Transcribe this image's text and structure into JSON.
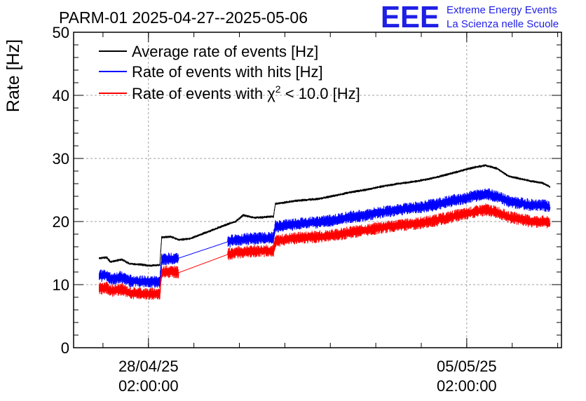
{
  "chart_data": {
    "type": "line",
    "title": "PARM-01 2025-04-27--2025-05-06",
    "ylabel": "Rate [Hz]",
    "xlabel": "",
    "ylim": [
      0,
      50
    ],
    "yticks": [
      0,
      10,
      20,
      30,
      40,
      50
    ],
    "xticks": [
      {
        "date": "2025-04-28T02:00:00",
        "label_line1": "28/04/25",
        "label_line2": "02:00:00"
      },
      {
        "date": "2025-05-05T02:00:00",
        "label_line1": "05/05/25",
        "label_line2": "02:00:00"
      }
    ],
    "xlim": [
      "2025-04-26T10:30:00",
      "2025-05-07T04:00:00"
    ],
    "grid": true,
    "legend_position": "top-left",
    "legend": [
      {
        "label": "Average rate of events [Hz]",
        "color": "#000000"
      },
      {
        "label": "Rate of events with hits [Hz]",
        "color": "#0000ff"
      },
      {
        "label_prefix": "Rate of events with ",
        "label_symbol": "χ",
        "label_sup": "2",
        "label_suffix": " < 10.0 [Hz]",
        "color": "#ff0000"
      }
    ],
    "series": [
      {
        "color": "#000000",
        "band": 0.2,
        "points": [
          [
            "2025-04-27T00:00:00",
            14.2
          ],
          [
            "2025-04-27T04:00:00",
            14.3
          ],
          [
            "2025-04-27T06:00:00",
            13.6
          ],
          [
            "2025-04-27T12:00:00",
            14.0
          ],
          [
            "2025-04-27T16:00:00",
            13.3
          ],
          [
            "2025-04-27T22:00:00",
            13.2
          ],
          [
            "2025-04-28T02:00:00",
            13.0
          ],
          [
            "2025-04-28T08:00:00",
            13.1
          ],
          [
            "2025-04-28T09:00:00",
            17.5
          ],
          [
            "2025-04-28T14:00:00",
            17.6
          ],
          [
            "2025-04-28T18:00:00",
            17.1
          ],
          [
            "2025-04-29T00:00:00",
            17.3
          ],
          [
            "2025-04-29T20:00:00",
            19.6
          ],
          [
            "2025-04-30T00:00:00",
            20.0
          ],
          [
            "2025-04-30T04:00:00",
            21.0
          ],
          [
            "2025-04-30T10:00:00",
            20.6
          ],
          [
            "2025-04-30T20:00:00",
            20.8
          ],
          [
            "2025-04-30T21:00:00",
            22.8
          ],
          [
            "2025-05-01T08:00:00",
            23.3
          ],
          [
            "2025-05-01T20:00:00",
            23.6
          ],
          [
            "2025-05-02T06:00:00",
            24.2
          ],
          [
            "2025-05-02T12:00:00",
            24.6
          ],
          [
            "2025-05-02T20:00:00",
            25.0
          ],
          [
            "2025-05-03T06:00:00",
            25.6
          ],
          [
            "2025-05-03T14:00:00",
            26.0
          ],
          [
            "2025-05-04T00:00:00",
            26.4
          ],
          [
            "2025-05-04T10:00:00",
            27.0
          ],
          [
            "2025-05-04T20:00:00",
            27.8
          ],
          [
            "2025-05-05T06:00:00",
            28.6
          ],
          [
            "2025-05-05T12:00:00",
            28.9
          ],
          [
            "2025-05-05T18:00:00",
            28.4
          ],
          [
            "2025-05-06T00:00:00",
            27.2
          ],
          [
            "2025-05-06T06:00:00",
            26.8
          ],
          [
            "2025-05-06T12:00:00",
            26.4
          ],
          [
            "2025-05-06T18:00:00",
            26.1
          ],
          [
            "2025-05-06T22:00:00",
            25.5
          ]
        ]
      },
      {
        "color": "#0000ff",
        "band": 1.0,
        "points": [
          [
            "2025-04-27T00:00:00",
            11.4
          ],
          [
            "2025-04-27T04:00:00",
            11.5
          ],
          [
            "2025-04-27T06:00:00",
            10.9
          ],
          [
            "2025-04-27T12:00:00",
            11.2
          ],
          [
            "2025-04-27T16:00:00",
            10.6
          ],
          [
            "2025-04-27T22:00:00",
            10.5
          ],
          [
            "2025-04-28T02:00:00",
            10.4
          ],
          [
            "2025-04-28T08:00:00",
            10.5
          ],
          [
            "2025-04-28T09:00:00",
            14.0
          ],
          [
            "2025-04-28T14:00:00",
            14.1
          ],
          [
            "2025-04-28T18:00:00",
            14.2
          ],
          [
            "2025-04-29T20:00:00",
            16.8
          ],
          [
            "2025-04-30T00:00:00",
            17.1
          ],
          [
            "2025-04-30T10:00:00",
            17.3
          ],
          [
            "2025-04-30T20:00:00",
            17.4
          ],
          [
            "2025-04-30T21:00:00",
            19.2
          ],
          [
            "2025-05-01T08:00:00",
            19.6
          ],
          [
            "2025-05-01T20:00:00",
            19.9
          ],
          [
            "2025-05-02T06:00:00",
            20.3
          ],
          [
            "2025-05-02T12:00:00",
            20.7
          ],
          [
            "2025-05-02T20:00:00",
            21.0
          ],
          [
            "2025-05-03T06:00:00",
            21.5
          ],
          [
            "2025-05-03T14:00:00",
            21.9
          ],
          [
            "2025-05-04T00:00:00",
            22.2
          ],
          [
            "2025-05-04T10:00:00",
            22.7
          ],
          [
            "2025-05-04T20:00:00",
            23.4
          ],
          [
            "2025-05-05T06:00:00",
            24.0
          ],
          [
            "2025-05-05T12:00:00",
            24.4
          ],
          [
            "2025-05-05T18:00:00",
            24.0
          ],
          [
            "2025-05-06T00:00:00",
            23.2
          ],
          [
            "2025-05-06T06:00:00",
            22.9
          ],
          [
            "2025-05-06T12:00:00",
            22.6
          ],
          [
            "2025-05-06T18:00:00",
            22.6
          ],
          [
            "2025-05-06T22:00:00",
            22.3
          ]
        ]
      },
      {
        "color": "#ff0000",
        "band": 1.0,
        "points": [
          [
            "2025-04-27T00:00:00",
            9.4
          ],
          [
            "2025-04-27T04:00:00",
            9.5
          ],
          [
            "2025-04-27T06:00:00",
            9.0
          ],
          [
            "2025-04-27T12:00:00",
            9.3
          ],
          [
            "2025-04-27T16:00:00",
            8.7
          ],
          [
            "2025-04-27T22:00:00",
            8.6
          ],
          [
            "2025-04-28T02:00:00",
            8.5
          ],
          [
            "2025-04-28T08:00:00",
            8.6
          ],
          [
            "2025-04-28T09:00:00",
            12.0
          ],
          [
            "2025-04-28T14:00:00",
            12.1
          ],
          [
            "2025-04-28T18:00:00",
            11.9
          ],
          [
            "2025-04-29T20:00:00",
            14.8
          ],
          [
            "2025-04-30T00:00:00",
            15.1
          ],
          [
            "2025-04-30T10:00:00",
            15.3
          ],
          [
            "2025-04-30T20:00:00",
            15.4
          ],
          [
            "2025-04-30T21:00:00",
            16.9
          ],
          [
            "2025-05-01T08:00:00",
            17.4
          ],
          [
            "2025-05-01T20:00:00",
            17.6
          ],
          [
            "2025-05-02T06:00:00",
            17.9
          ],
          [
            "2025-05-02T12:00:00",
            18.3
          ],
          [
            "2025-05-02T20:00:00",
            18.6
          ],
          [
            "2025-05-03T06:00:00",
            19.1
          ],
          [
            "2025-05-03T14:00:00",
            19.4
          ],
          [
            "2025-05-04T00:00:00",
            19.7
          ],
          [
            "2025-05-04T10:00:00",
            20.2
          ],
          [
            "2025-05-04T20:00:00",
            20.9
          ],
          [
            "2025-05-05T06:00:00",
            21.5
          ],
          [
            "2025-05-05T12:00:00",
            21.9
          ],
          [
            "2025-05-05T18:00:00",
            21.5
          ],
          [
            "2025-05-06T00:00:00",
            20.7
          ],
          [
            "2025-05-06T06:00:00",
            20.4
          ],
          [
            "2025-05-06T12:00:00",
            20.0
          ],
          [
            "2025-05-06T18:00:00",
            20.0
          ],
          [
            "2025-05-06T22:00:00",
            19.8
          ]
        ]
      }
    ]
  },
  "logo": {
    "mark": "EEE",
    "line1": "Extreme Energy Events",
    "line2": "La Scienza nelle Scuole",
    "color": "#1f1fe6"
  }
}
